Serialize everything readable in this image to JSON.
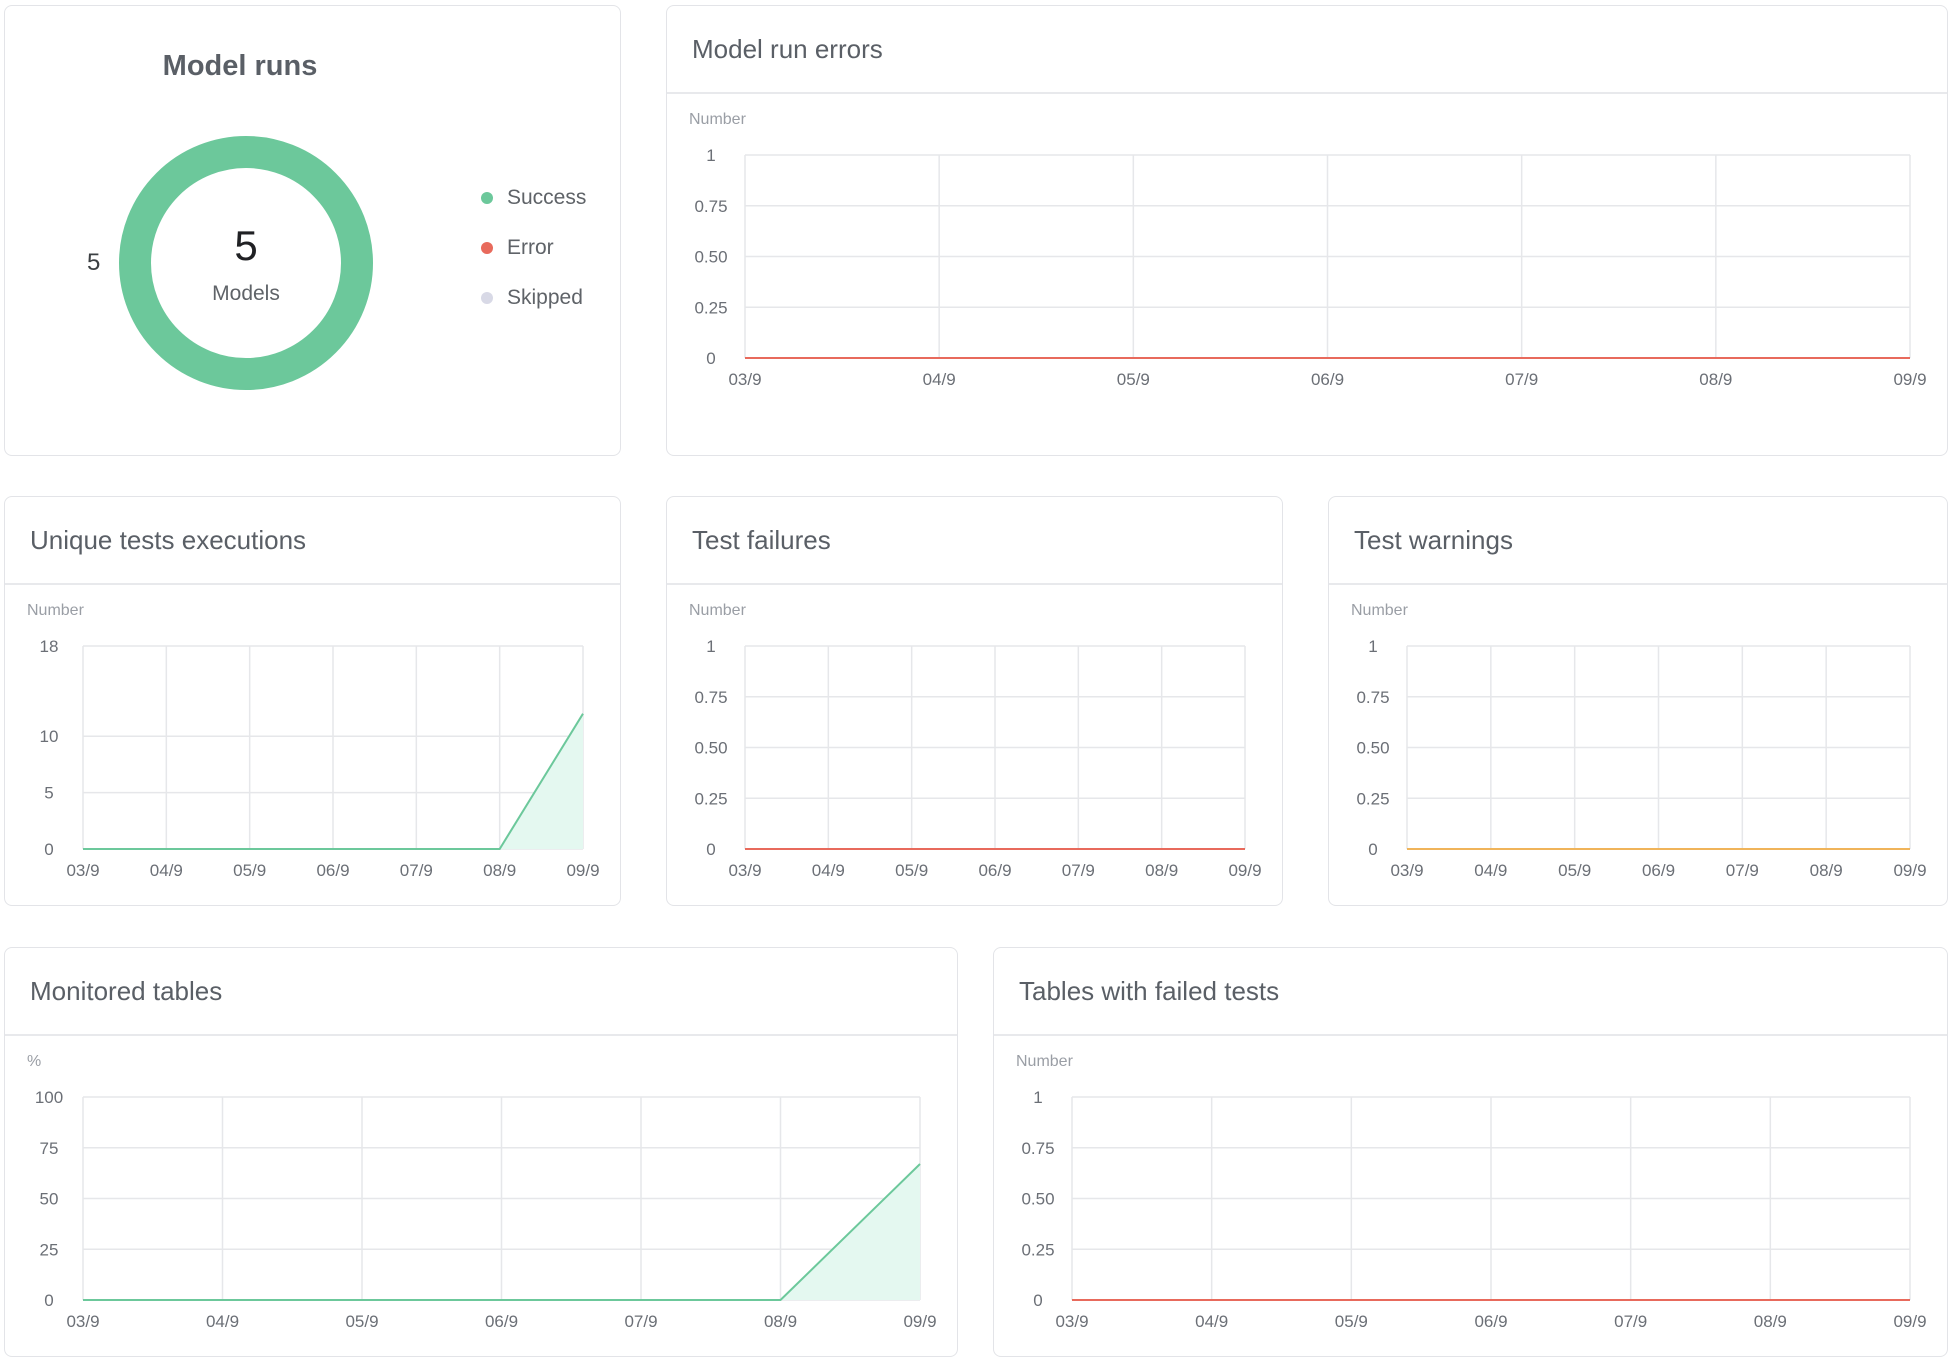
{
  "model_runs": {
    "title": "Model runs",
    "center_value": "5",
    "center_label": "Models",
    "side_label": "5",
    "legend": [
      {
        "label": "Success",
        "color": "#6cc89b"
      },
      {
        "label": "Error",
        "color": "#e86a5c"
      },
      {
        "label": "Skipped",
        "color": "#d8d9e6"
      }
    ]
  },
  "colors": {
    "success": "#6cc89b",
    "error_line": "#e86a5c",
    "warning_line": "#f0b45a",
    "area_fill": "#e4f8f0",
    "area_line": "#6cc89b"
  },
  "chart_data": [
    {
      "id": "model-run-errors",
      "type": "line",
      "title": "Model run errors",
      "ylabel": "Number",
      "x": [
        "03/9",
        "04/9",
        "05/9",
        "06/9",
        "07/9",
        "08/9",
        "09/9"
      ],
      "yticks": [
        "0",
        "0.25",
        "0.50",
        "0.75",
        "1"
      ],
      "ylim": [
        0,
        1
      ],
      "series": [
        {
          "values": [
            0,
            0,
            0,
            0,
            0,
            0,
            0
          ],
          "color": "#e86a5c",
          "fill": false
        }
      ]
    },
    {
      "id": "unique-tests-executions",
      "type": "area",
      "title": "Unique tests executions",
      "ylabel": "Number",
      "x": [
        "03/9",
        "04/9",
        "05/9",
        "06/9",
        "07/9",
        "08/9",
        "09/9"
      ],
      "yticks": [
        "0",
        "5",
        "10",
        "18"
      ],
      "ylim": [
        0,
        18
      ],
      "series": [
        {
          "values": [
            0,
            0,
            0,
            0,
            0,
            0,
            12
          ],
          "color": "#6cc89b",
          "fill": true
        }
      ]
    },
    {
      "id": "test-failures",
      "type": "line",
      "title": "Test failures",
      "ylabel": "Number",
      "x": [
        "03/9",
        "04/9",
        "05/9",
        "06/9",
        "07/9",
        "08/9",
        "09/9"
      ],
      "yticks": [
        "0",
        "0.25",
        "0.50",
        "0.75",
        "1"
      ],
      "ylim": [
        0,
        1
      ],
      "series": [
        {
          "values": [
            0,
            0,
            0,
            0,
            0,
            0,
            0
          ],
          "color": "#e86a5c",
          "fill": false
        }
      ]
    },
    {
      "id": "test-warnings",
      "type": "line",
      "title": "Test warnings",
      "ylabel": "Number",
      "x": [
        "03/9",
        "04/9",
        "05/9",
        "06/9",
        "07/9",
        "08/9",
        "09/9"
      ],
      "yticks": [
        "0",
        "0.25",
        "0.50",
        "0.75",
        "1"
      ],
      "ylim": [
        0,
        1
      ],
      "series": [
        {
          "values": [
            0,
            0,
            0,
            0,
            0,
            0,
            0
          ],
          "color": "#f0b45a",
          "fill": false
        }
      ]
    },
    {
      "id": "monitored-tables",
      "type": "area",
      "title": "Monitored tables",
      "ylabel": "%",
      "x": [
        "03/9",
        "04/9",
        "05/9",
        "06/9",
        "07/9",
        "08/9",
        "09/9"
      ],
      "yticks": [
        "0",
        "25",
        "50",
        "75",
        "100"
      ],
      "ylim": [
        0,
        100
      ],
      "series": [
        {
          "values": [
            0,
            0,
            0,
            0,
            0,
            0,
            67
          ],
          "color": "#6cc89b",
          "fill": true
        }
      ]
    },
    {
      "id": "tables-with-failed-tests",
      "type": "line",
      "title": "Tables with failed tests",
      "ylabel": "Number",
      "x": [
        "03/9",
        "04/9",
        "05/9",
        "06/9",
        "07/9",
        "08/9",
        "09/9"
      ],
      "yticks": [
        "0",
        "0.25",
        "0.50",
        "0.75",
        "1"
      ],
      "ylim": [
        0,
        1
      ],
      "series": [
        {
          "values": [
            0,
            0,
            0,
            0,
            0,
            0,
            0
          ],
          "color": "#e86a5c",
          "fill": false
        }
      ]
    }
  ]
}
